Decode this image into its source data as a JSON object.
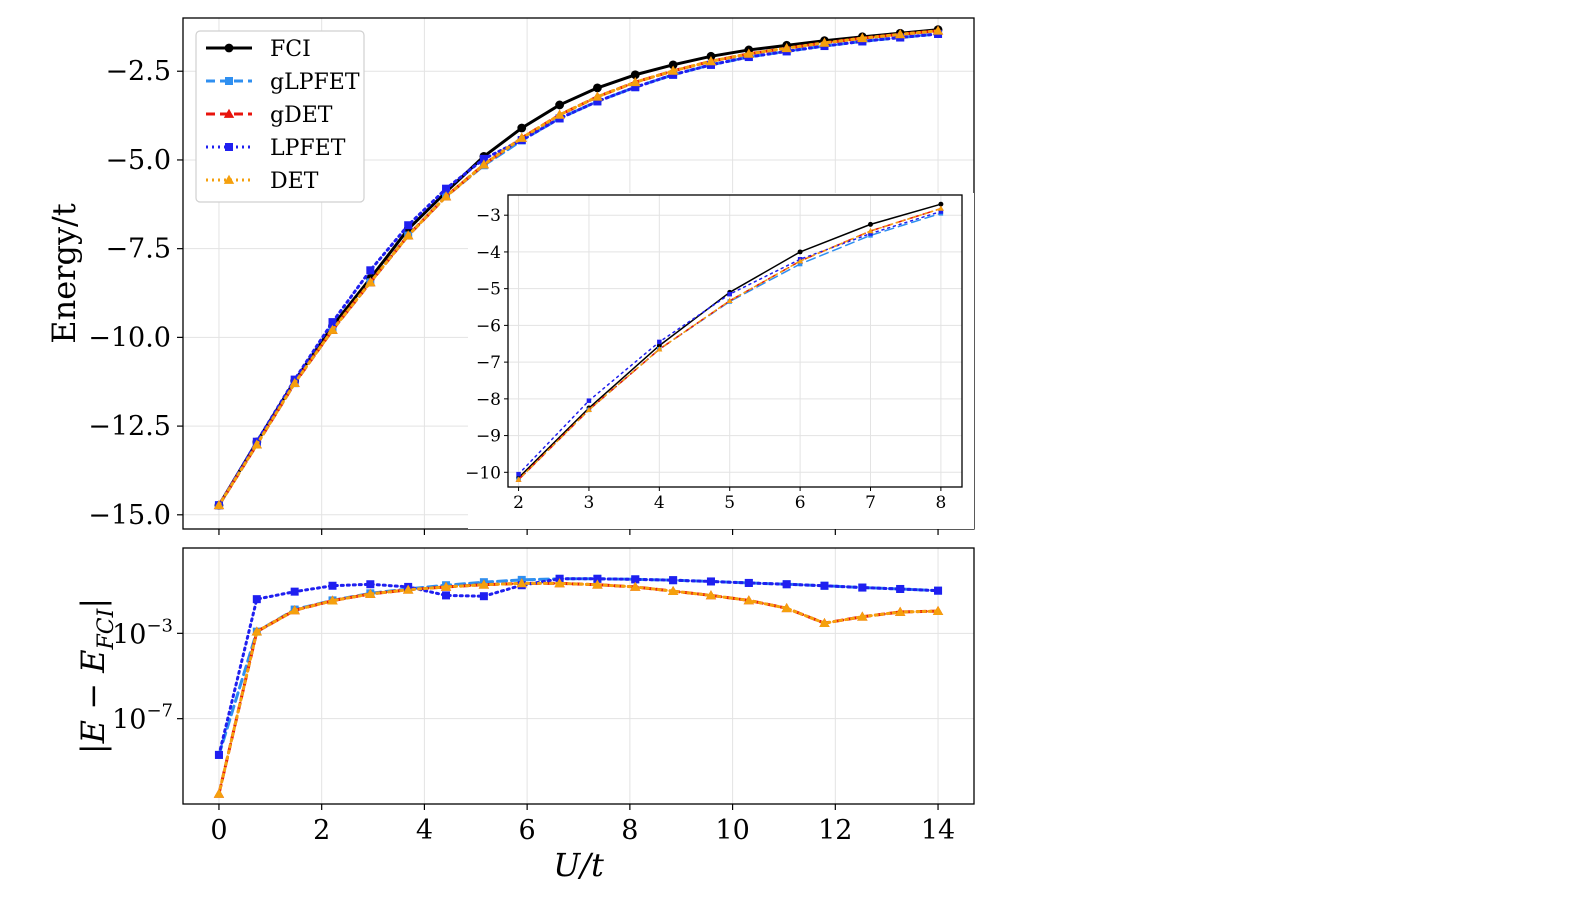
{
  "chart_data": [
    {
      "id": "main",
      "type": "line",
      "ylabel": "Energy/t",
      "xlim": [
        -0.7,
        14.7
      ],
      "ylim": [
        -15.4,
        -1.0
      ],
      "grid": true,
      "legend": "top-left",
      "xticks": [
        0,
        2,
        4,
        6,
        8,
        10,
        12,
        14
      ],
      "yticks": [
        -2.5,
        -5.0,
        -7.5,
        -10.0,
        -12.5,
        -15.0
      ],
      "ytick_labels": [
        "−2.5",
        "−5.0",
        "−7.5",
        "−10.0",
        "−12.5",
        "−15.0"
      ],
      "x": [
        0,
        0.737,
        1.474,
        2.211,
        2.947,
        3.684,
        4.421,
        5.158,
        5.895,
        6.632,
        7.368,
        8.105,
        8.842,
        9.579,
        10.316,
        11.053,
        11.789,
        12.526,
        13.263,
        14.0
      ],
      "series": [
        {
          "name": "FCI",
          "color": "#000000",
          "dash": "solid",
          "marker": "circle",
          "values": [
            -14.73,
            -12.95,
            -11.23,
            -9.68,
            -8.34,
            -6.95,
            -5.9,
            -4.9,
            -4.1,
            -3.45,
            -2.97,
            -2.6,
            -2.32,
            -2.08,
            -1.9,
            -1.77,
            -1.64,
            -1.53,
            -1.43,
            -1.33
          ]
        },
        {
          "name": "gLPFET",
          "color": "#2f8ff0",
          "dash": "dashed",
          "marker": "square",
          "values": [
            -14.73,
            -13.02,
            -11.29,
            -9.79,
            -8.45,
            -7.13,
            -6.03,
            -5.15,
            -4.45,
            -3.83,
            -3.35,
            -2.95,
            -2.6,
            -2.32,
            -2.1,
            -1.94,
            -1.79,
            -1.66,
            -1.55,
            -1.45
          ]
        },
        {
          "name": "gDET",
          "color": "#e8140d",
          "dash": "dashed",
          "marker": "triangle",
          "values": [
            -14.73,
            -13.02,
            -11.29,
            -9.79,
            -8.45,
            -7.13,
            -6.03,
            -5.13,
            -4.38,
            -3.73,
            -3.22,
            -2.81,
            -2.49,
            -2.22,
            -2.01,
            -1.85,
            -1.7,
            -1.57,
            -1.46,
            -1.36
          ]
        },
        {
          "name": "LPFET",
          "color": "#1f1ff0",
          "dash": "dotted",
          "marker": "square",
          "values": [
            -14.73,
            -12.94,
            -11.19,
            -9.57,
            -8.11,
            -6.84,
            -5.81,
            -4.97,
            -4.44,
            -3.83,
            -3.35,
            -2.95,
            -2.6,
            -2.32,
            -2.1,
            -1.94,
            -1.79,
            -1.66,
            -1.55,
            -1.45
          ]
        },
        {
          "name": "DET",
          "color": "#f5a00d",
          "dash": "dotted",
          "marker": "triangle",
          "values": [
            -14.73,
            -13.02,
            -11.29,
            -9.79,
            -8.45,
            -7.13,
            -6.03,
            -5.13,
            -4.38,
            -3.73,
            -3.22,
            -2.81,
            -2.49,
            -2.22,
            -2.01,
            -1.85,
            -1.7,
            -1.57,
            -1.46,
            -1.36
          ]
        }
      ]
    },
    {
      "id": "inset",
      "type": "line",
      "xlim": [
        1.85,
        8.3
      ],
      "ylim": [
        -10.4,
        -2.45
      ],
      "grid": true,
      "xticks": [
        2,
        3,
        4,
        5,
        6,
        7,
        8
      ],
      "yticks": [
        -3,
        -4,
        -5,
        -6,
        -7,
        -8,
        -9,
        -10
      ],
      "ytick_labels": [
        "−3",
        "−4",
        "−5",
        "−6",
        "−7",
        "−8",
        "−9",
        "−10"
      ],
      "x": [
        2,
        3,
        4,
        5,
        6,
        7,
        8
      ],
      "series": [
        {
          "name": "FCI",
          "color": "#000000",
          "dash": "solid",
          "marker": "circle",
          "values": [
            -10.15,
            -8.25,
            -6.55,
            -5.1,
            -4.0,
            -3.25,
            -2.7
          ]
        },
        {
          "name": "gLPFET",
          "color": "#2f8ff0",
          "dash": "dashed",
          "marker": "square",
          "values": [
            -10.2,
            -8.3,
            -6.65,
            -5.35,
            -4.33,
            -3.55,
            -2.95
          ]
        },
        {
          "name": "gDET",
          "color": "#e8140d",
          "dash": "dashed",
          "marker": "triangle",
          "values": [
            -10.2,
            -8.3,
            -6.65,
            -5.33,
            -4.25,
            -3.43,
            -2.82
          ]
        },
        {
          "name": "LPFET",
          "color": "#1f1ff0",
          "dash": "dotted",
          "marker": "square",
          "values": [
            -10.05,
            -8.05,
            -6.45,
            -5.15,
            -4.2,
            -3.5,
            -2.9
          ]
        },
        {
          "name": "DET",
          "color": "#f5a00d",
          "dash": "dotted",
          "marker": "triangle",
          "values": [
            -10.2,
            -8.3,
            -6.65,
            -5.33,
            -4.25,
            -3.43,
            -2.82
          ]
        }
      ]
    },
    {
      "id": "error",
      "type": "line",
      "xlabel": "U/t",
      "ylabel": "|E − E_FCI|",
      "yscale": "log",
      "xlim": [
        -0.7,
        14.7
      ],
      "ylim": [
        1e-11,
        10.0
      ],
      "grid": true,
      "xticks": [
        0,
        2,
        4,
        6,
        8,
        10,
        12,
        14
      ],
      "yticks": [
        0.001,
        1e-07
      ],
      "ytick_labels": [
        [
          "10",
          "−3"
        ],
        [
          "10",
          "−7"
        ]
      ],
      "x": [
        0,
        0.737,
        1.474,
        2.211,
        2.947,
        3.684,
        4.421,
        5.158,
        5.895,
        6.632,
        7.368,
        8.105,
        8.842,
        9.579,
        10.316,
        11.053,
        11.789,
        12.526,
        13.263,
        14.0
      ],
      "series": [
        {
          "name": "gLPFET",
          "color": "#2f8ff0",
          "dash": "dashed",
          "marker": "square",
          "values": [
            2e-09,
            0.0012,
            0.013,
            0.035,
            0.075,
            0.12,
            0.18,
            0.25,
            0.32,
            0.36,
            0.36,
            0.34,
            0.31,
            0.27,
            0.23,
            0.2,
            0.17,
            0.14,
            0.12,
            0.1
          ]
        },
        {
          "name": "gDET",
          "color": "#e8140d",
          "dash": "dashed",
          "marker": "triangle",
          "values": [
            3e-11,
            0.0012,
            0.012,
            0.034,
            0.07,
            0.11,
            0.15,
            0.19,
            0.22,
            0.22,
            0.19,
            0.15,
            0.095,
            0.06,
            0.035,
            0.015,
            0.003,
            0.006,
            0.01,
            0.011
          ]
        },
        {
          "name": "LPFET",
          "color": "#1f1ff0",
          "dash": "dotted",
          "marker": "square",
          "values": [
            2e-09,
            0.04,
            0.09,
            0.17,
            0.2,
            0.15,
            0.06,
            0.055,
            0.18,
            0.36,
            0.36,
            0.34,
            0.31,
            0.27,
            0.23,
            0.2,
            0.17,
            0.14,
            0.12,
            0.1
          ]
        },
        {
          "name": "DET",
          "color": "#f5a00d",
          "dash": "dotted",
          "marker": "triangle",
          "values": [
            3e-11,
            0.0012,
            0.012,
            0.034,
            0.07,
            0.11,
            0.15,
            0.19,
            0.22,
            0.22,
            0.19,
            0.15,
            0.095,
            0.06,
            0.035,
            0.015,
            0.003,
            0.006,
            0.01,
            0.011
          ]
        }
      ]
    }
  ]
}
